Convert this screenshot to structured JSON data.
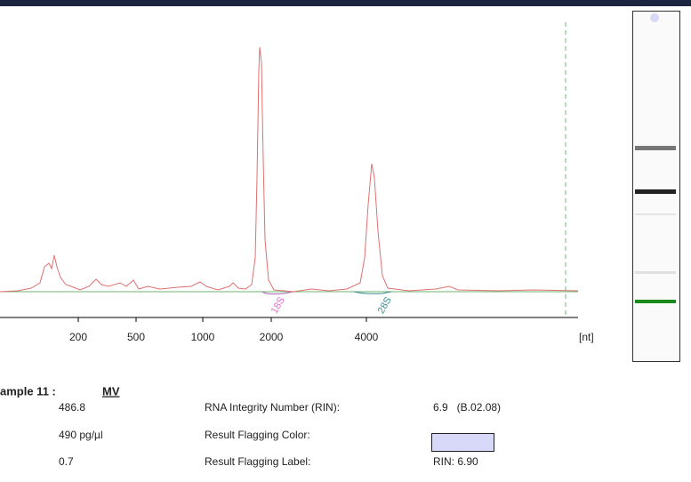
{
  "electropherogram": {
    "x_tick_labels": [
      "200",
      "500",
      "1000",
      "2000",
      "4000"
    ],
    "unit_label": "[nt]",
    "peak_labels": [
      "18S",
      "28S"
    ]
  },
  "sample": {
    "label": "ample 11 :",
    "name": "MV"
  },
  "results": [
    {
      "left": "486.8",
      "label": "RNA Integrity Number (RIN):",
      "value": "6.9   (B.02.08)"
    },
    {
      "left": "490 pg/µl",
      "label": "Result Flagging Color:"
    },
    {
      "left": "0.7",
      "label": "Result Flagging Label:",
      "value": "RIN: 6.90"
    }
  ]
}
